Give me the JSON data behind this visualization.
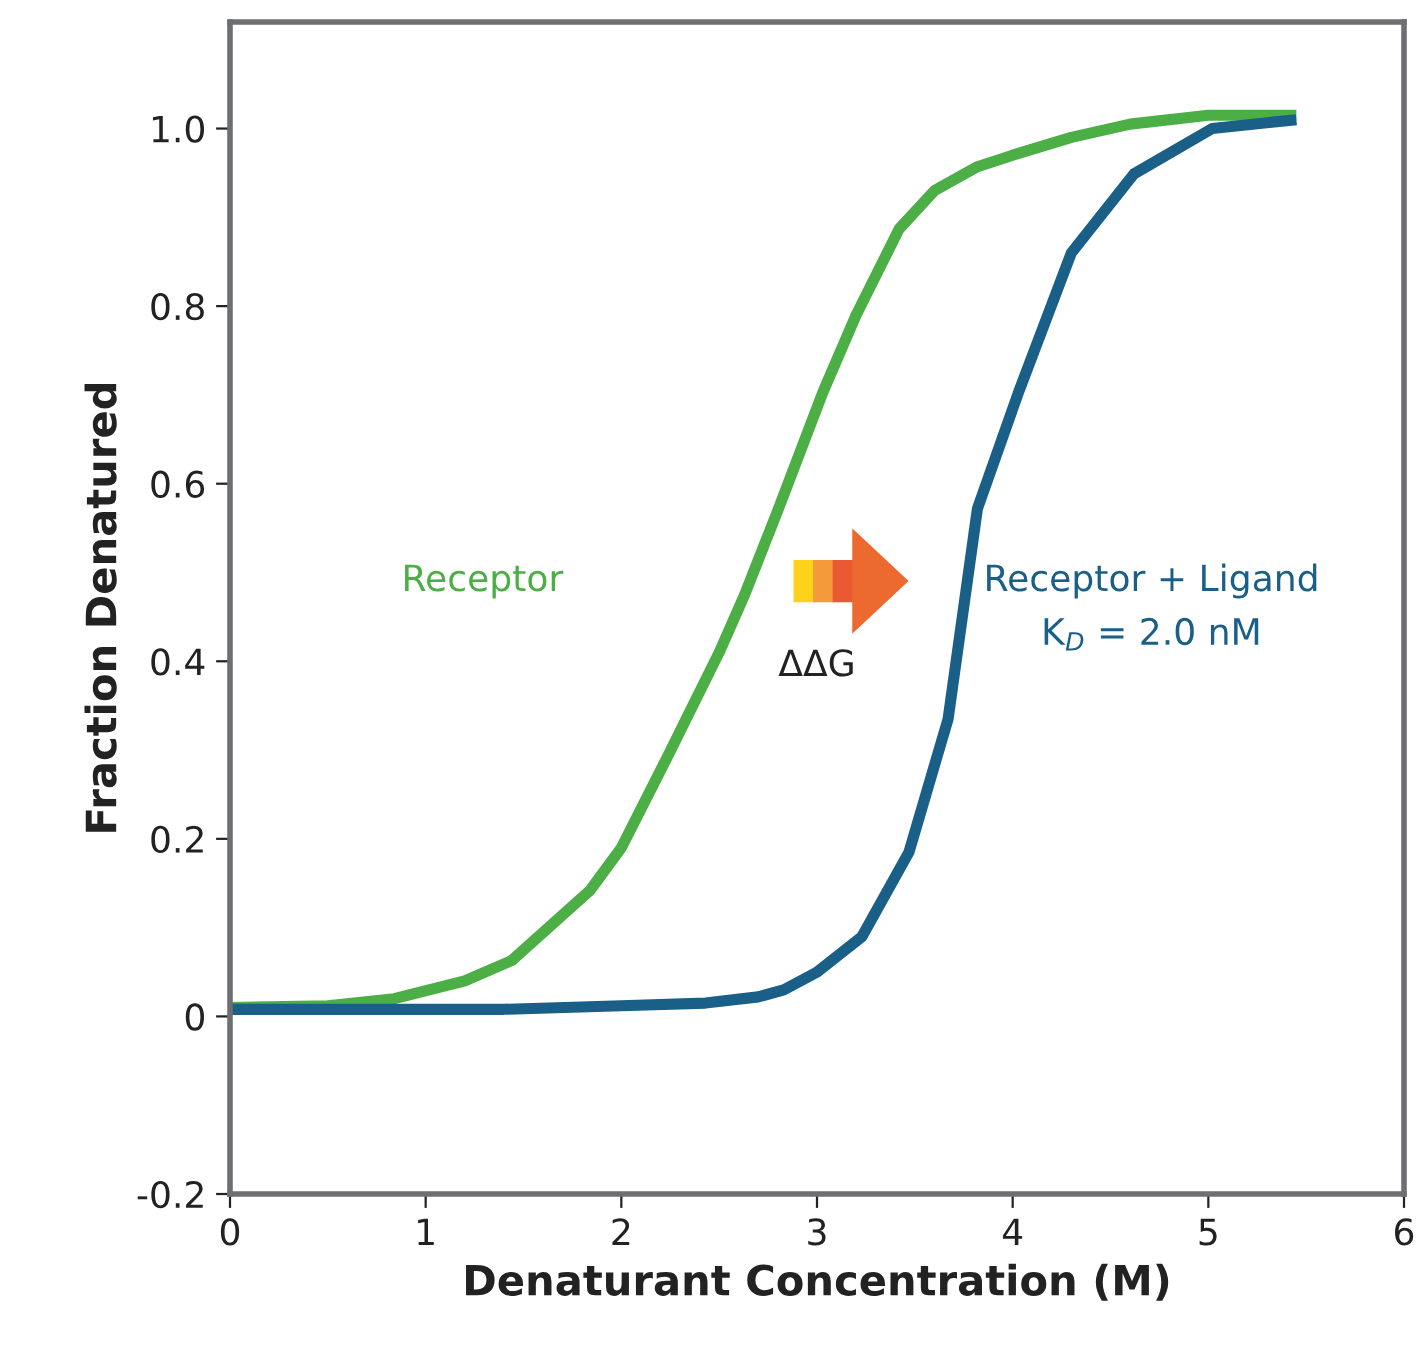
{
  "chart_data": {
    "type": "line",
    "xlabel": "Denaturant Concentration (M)",
    "ylabel": "Fraction Denatured",
    "xlim": [
      0,
      6
    ],
    "ylim": [
      -0.2,
      1.12
    ],
    "xticks": [
      0,
      1,
      2,
      3,
      4,
      5,
      6
    ],
    "yticks": [
      -0.2,
      0,
      0.2,
      0.4,
      0.6,
      0.8,
      {
        "value": 1,
        "label": "1.0"
      }
    ],
    "grid": false,
    "legend": false,
    "marker": "none",
    "line_style": "solid",
    "series": [
      {
        "name": "Receptor",
        "color": "#4caf46",
        "x": [
          0,
          0.5,
          0.84,
          1.2,
          1.44,
          1.84,
          2.0,
          2.23,
          2.5,
          2.63,
          2.8,
          3.03,
          3.2,
          3.42,
          3.6,
          3.82,
          4.0,
          4.3,
          4.6,
          5.0,
          5.45
        ],
        "values": [
          0.01,
          0.012,
          0.02,
          0.04,
          0.063,
          0.142,
          0.19,
          0.29,
          0.41,
          0.475,
          0.57,
          0.703,
          0.79,
          0.887,
          0.93,
          0.957,
          0.97,
          0.99,
          1.005,
          1.015,
          1.015
        ]
      },
      {
        "name": "Receptor + Ligand",
        "color": "#1a5f88",
        "x": [
          0,
          1.4,
          2.0,
          2.43,
          2.7,
          2.83,
          3.0,
          3.23,
          3.47,
          3.67,
          3.82,
          4.03,
          4.3,
          4.62,
          5.02,
          5.45
        ],
        "values": [
          0.008,
          0.008,
          0.012,
          0.015,
          0.022,
          0.03,
          0.05,
          0.09,
          0.185,
          0.335,
          0.572,
          0.703,
          0.86,
          0.949,
          1.0,
          1.01
        ]
      }
    ],
    "annotations": [
      "ΔΔG",
      "K$_{D}$ = 2.0 nM"
    ]
  }
}
